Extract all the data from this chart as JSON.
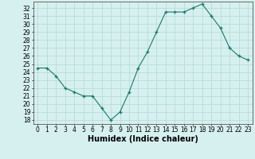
{
  "x": [
    0,
    1,
    2,
    3,
    4,
    5,
    6,
    7,
    8,
    9,
    10,
    11,
    12,
    13,
    14,
    15,
    16,
    17,
    18,
    19,
    20,
    21,
    22,
    23
  ],
  "y": [
    24.5,
    24.5,
    23.5,
    22.0,
    21.5,
    21.0,
    21.0,
    19.5,
    18.0,
    19.0,
    21.5,
    24.5,
    26.5,
    29.0,
    31.5,
    31.5,
    31.5,
    32.0,
    32.5,
    31.0,
    29.5,
    27.0,
    26.0,
    25.5
  ],
  "xlabel": "Humidex (Indice chaleur)",
  "ylim": [
    17.5,
    32.8
  ],
  "xlim": [
    -0.5,
    23.5
  ],
  "yticks": [
    18,
    19,
    20,
    21,
    22,
    23,
    24,
    25,
    26,
    27,
    28,
    29,
    30,
    31,
    32
  ],
  "xticks": [
    0,
    1,
    2,
    3,
    4,
    5,
    6,
    7,
    8,
    9,
    10,
    11,
    12,
    13,
    14,
    15,
    16,
    17,
    18,
    19,
    20,
    21,
    22,
    23
  ],
  "line_color": "#1a7a6a",
  "marker_color": "#1a7a6a",
  "bg_color": "#d6f0ef",
  "grid_color": "#b0d8d5",
  "tick_label_fontsize": 5.5,
  "xlabel_fontsize": 7.0
}
